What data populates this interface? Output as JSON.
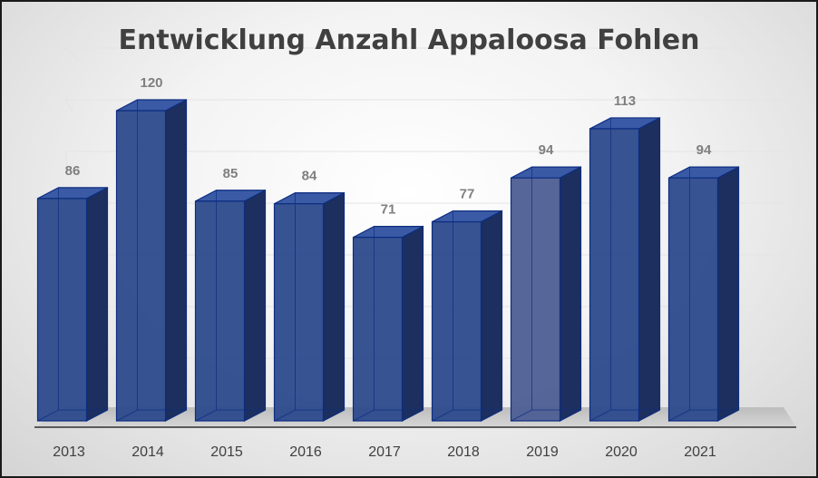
{
  "chart_data": {
    "type": "bar",
    "title": "Entwicklung Anzahl Appaloosa Fohlen",
    "categories": [
      "2013",
      "2014",
      "2015",
      "2016",
      "2017",
      "2018",
      "2019",
      "2020",
      "2021"
    ],
    "values": [
      86,
      120,
      85,
      84,
      71,
      77,
      94,
      113,
      94
    ],
    "data_labels": [
      "86",
      "120",
      "85",
      "84",
      "71",
      "77",
      "94",
      "113",
      "94"
    ],
    "ylim": [
      0,
      140
    ],
    "grid": true,
    "legend": "none",
    "style": "3d-column",
    "colors": {
      "bar_front": "#2c4a8c",
      "bar_side": "#1c2f5e",
      "bar_top": "#3a5aa6",
      "bar_edge": "#0d2d80",
      "bar_2019_front": "#4e5e93",
      "value_label": "#7f7f7f",
      "tick_label": "#404040",
      "title": "#404040"
    }
  }
}
